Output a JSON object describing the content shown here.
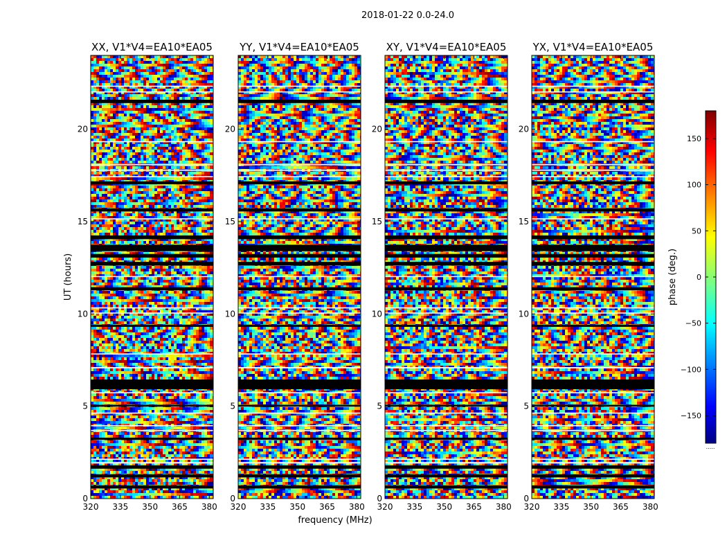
{
  "figure": {
    "suptitle": "2018-01-22 0.0-24.0",
    "xlabel": "frequency (MHz)",
    "ylabel": "UT (hours)"
  },
  "chart_data": [
    {
      "type": "heatmap",
      "title": "XX, V1*V4=EA10*EA05",
      "x_range": [
        320,
        382
      ],
      "xticks": [
        320,
        335,
        350,
        365,
        380
      ],
      "y_range": [
        0,
        24
      ],
      "yticks": [
        0,
        5,
        10,
        15,
        20
      ]
    },
    {
      "type": "heatmap",
      "title": "YY, V1*V4=EA10*EA05",
      "x_range": [
        320,
        382
      ],
      "xticks": [
        320,
        335,
        350,
        365,
        380
      ],
      "y_range": [
        0,
        24
      ],
      "yticks": [
        0,
        5,
        10,
        15,
        20
      ]
    },
    {
      "type": "heatmap",
      "title": "XY, V1*V4=EA10*EA05",
      "x_range": [
        320,
        382
      ],
      "xticks": [
        320,
        335,
        350,
        365,
        380
      ],
      "y_range": [
        0,
        24
      ],
      "yticks": [
        0,
        5,
        10,
        15,
        20
      ]
    },
    {
      "type": "heatmap",
      "title": "YX, V1*V4=EA10*EA05",
      "x_range": [
        320,
        382
      ],
      "xticks": [
        320,
        335,
        350,
        365,
        380
      ],
      "y_range": [
        0,
        24
      ],
      "yticks": [
        0,
        5,
        10,
        15,
        20
      ]
    }
  ],
  "colorbar": {
    "label": "phase (deg.)",
    "range": [
      -180,
      180
    ],
    "ticks": [
      150,
      100,
      50,
      0,
      -50,
      -100,
      -150
    ],
    "colormap": "jet",
    "colormap_stops": [
      "#00007f",
      "#0000ff",
      "#00ffff",
      "#ffff00",
      "#ff0000",
      "#7f0000"
    ],
    "footnote": "....."
  },
  "flagged_ut_hours": [
    [
      0.55,
      0.72
    ],
    [
      1.15,
      1.32
    ],
    [
      1.62,
      1.8
    ],
    [
      3.18,
      3.3
    ],
    [
      4.98,
      5.08
    ],
    [
      5.92,
      6.45
    ],
    [
      9.3,
      9.42
    ],
    [
      11.28,
      11.45
    ],
    [
      12.62,
      12.82
    ],
    [
      13.05,
      13.25
    ],
    [
      13.4,
      13.75
    ],
    [
      14.05,
      14.25
    ],
    [
      15.55,
      15.72
    ],
    [
      17.02,
      17.18
    ],
    [
      21.42,
      21.6
    ]
  ],
  "blank_ut_hours": [
    [
      1.9,
      1.98
    ],
    [
      2.1,
      2.16
    ],
    [
      3.65,
      3.72
    ],
    [
      3.92,
      3.98
    ],
    [
      4.6,
      4.66
    ],
    [
      5.7,
      5.76
    ],
    [
      7.05,
      7.12
    ],
    [
      7.8,
      7.86
    ],
    [
      10.02,
      10.08
    ],
    [
      10.3,
      10.36
    ],
    [
      12.0,
      12.05
    ],
    [
      15.12,
      15.18
    ],
    [
      17.4,
      17.46
    ],
    [
      17.75,
      17.82
    ],
    [
      18.05,
      18.12
    ],
    [
      19.3,
      19.36
    ],
    [
      22.0,
      22.05
    ],
    [
      22.3,
      22.36
    ]
  ]
}
